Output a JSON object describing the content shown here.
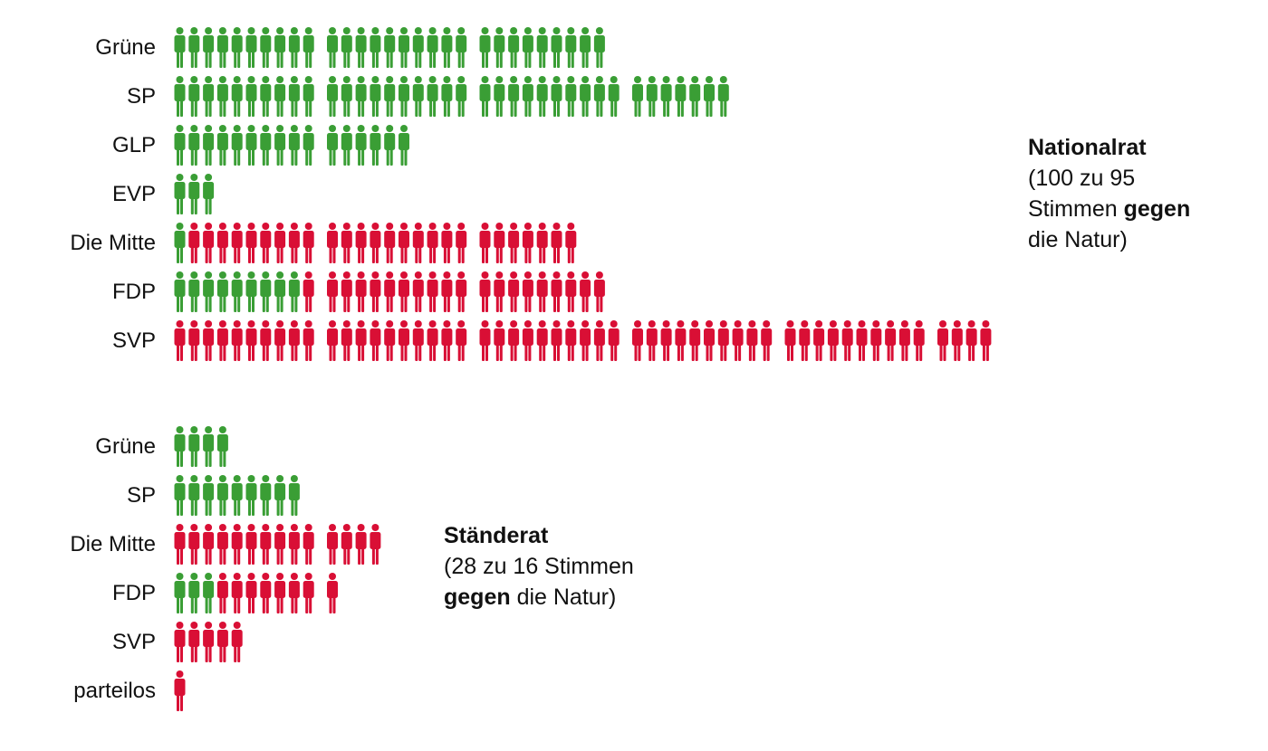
{
  "colors": {
    "pro": "#3a9e35",
    "contra": "#d90f35"
  },
  "icon": "person-icon",
  "chart_data": [
    {
      "type": "pictogram",
      "title": "Nationalrat",
      "subtitle_parts": [
        "(100 zu 95",
        "Stimmen ",
        "gegen",
        "die Natur)"
      ],
      "group_size": 10,
      "categories": [
        "Grüne",
        "SP",
        "GLP",
        "EVP",
        "Die Mitte",
        "FDP",
        "SVP"
      ],
      "series": [
        {
          "color": "#3a9e35",
          "values": [
            29,
            37,
            16,
            3,
            1,
            9,
            0
          ]
        },
        {
          "color": "#d90f35",
          "values": [
            0,
            0,
            0,
            0,
            26,
            20,
            54
          ]
        }
      ]
    },
    {
      "type": "pictogram",
      "title": "Ständerat",
      "subtitle_parts": [
        "(28 zu 16 Stimmen",
        "gegen",
        " die Natur)"
      ],
      "group_size": 10,
      "categories": [
        "Grüne",
        "SP",
        "Die Mitte",
        "FDP",
        "SVP",
        "parteilos"
      ],
      "series": [
        {
          "color": "#3a9e35",
          "values": [
            4,
            9,
            0,
            3,
            0,
            0
          ]
        },
        {
          "color": "#d90f35",
          "values": [
            0,
            0,
            14,
            8,
            5,
            1
          ]
        }
      ]
    }
  ]
}
